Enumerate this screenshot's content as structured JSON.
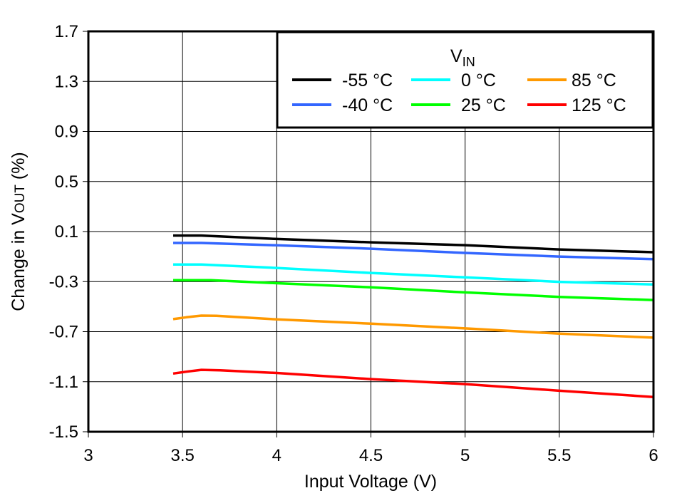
{
  "chart_data": {
    "type": "line",
    "title": "",
    "xlabel": "Input Voltage (V)",
    "ylabel_main": "Change in V",
    "ylabel_sub": "OUT",
    "ylabel_tail": " (%)",
    "xlim": [
      3,
      6
    ],
    "ylim": [
      -1.5,
      1.7
    ],
    "xticks": [
      "3",
      "3.5",
      "4",
      "4.5",
      "5",
      "5.5",
      "6"
    ],
    "yticks": [
      "1.7",
      "1.3",
      "0.9",
      "0.5",
      "0.1",
      "-0.3",
      "-0.7",
      "-1.1",
      "-1.5"
    ],
    "grid": true,
    "legend": {
      "placement": "top-right",
      "title_main": "V",
      "title_sub": "IN"
    },
    "series": [
      {
        "name": "-55 °C",
        "color": "#000000",
        "x": [
          3.45,
          3.6,
          4,
          4.5,
          5,
          5.5,
          6
        ],
        "y": [
          0.068,
          0.068,
          0.041,
          0.014,
          -0.009,
          -0.043,
          -0.065
        ]
      },
      {
        "name": "-40 °C",
        "color": "#3366ff",
        "x": [
          3.45,
          3.6,
          4,
          4.5,
          5,
          5.5,
          6
        ],
        "y": [
          0.009,
          0.009,
          -0.01,
          -0.037,
          -0.071,
          -0.1,
          -0.121
        ]
      },
      {
        "name": "0 °C",
        "color": "#00ffff",
        "x": [
          3.45,
          3.6,
          4,
          4.5,
          5,
          5.5,
          6
        ],
        "y": [
          -0.163,
          -0.163,
          -0.191,
          -0.231,
          -0.266,
          -0.302,
          -0.323
        ]
      },
      {
        "name": "25 °C",
        "color": "#00ff00",
        "x": [
          3.45,
          3.65,
          4,
          4.5,
          5,
          5.5,
          6
        ],
        "y": [
          -0.289,
          -0.289,
          -0.313,
          -0.346,
          -0.386,
          -0.422,
          -0.447
        ]
      },
      {
        "name": "85 °C",
        "color": "#ff9900",
        "x": [
          3.45,
          3.52,
          3.6,
          3.68,
          4,
          4.5,
          5,
          5.5,
          6
        ],
        "y": [
          -0.6,
          -0.585,
          -0.572,
          -0.573,
          -0.602,
          -0.636,
          -0.674,
          -0.716,
          -0.748
        ]
      },
      {
        "name": "125 °C",
        "color": "#ff0000",
        "x": [
          3.45,
          3.52,
          3.6,
          3.7,
          4,
          4.5,
          5,
          5.5,
          6
        ],
        "y": [
          -1.035,
          -1.02,
          -1.005,
          -1.009,
          -1.03,
          -1.079,
          -1.119,
          -1.172,
          -1.222
        ]
      }
    ]
  }
}
